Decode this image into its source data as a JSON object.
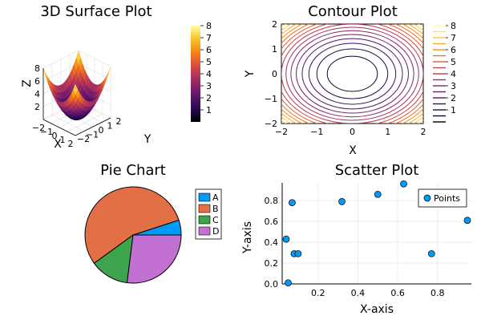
{
  "chart_data": [
    {
      "type": "surface",
      "title": "3D Surface Plot",
      "xlabel": "X",
      "ylabel": "Y",
      "zlabel": "Z",
      "function": "x^2 + y^2",
      "xlim": [
        -2,
        2
      ],
      "ylim": [
        -2,
        2
      ],
      "zlim": [
        0,
        8
      ],
      "x_ticks": [
        "−2",
        "−1",
        "0",
        "1",
        "2"
      ],
      "y_ticks": [
        "−2",
        "−1",
        "0",
        "1",
        "2"
      ],
      "z_ticks": [
        "2",
        "4",
        "6",
        "8"
      ],
      "colormap": "inferno",
      "colorbar_ticks": [
        "1",
        "2",
        "3",
        "4",
        "5",
        "6",
        "7",
        "8"
      ],
      "colorbar_range": [
        0,
        8
      ]
    },
    {
      "type": "contour",
      "title": "Contour Plot",
      "xlabel": "X",
      "ylabel": "Y",
      "function": "x^2 + y^2",
      "xlim": [
        -2,
        2
      ],
      "ylim": [
        -2,
        2
      ],
      "x_ticks": [
        "−2",
        "−1",
        "0",
        "1",
        "2"
      ],
      "y_ticks": [
        "−2",
        "−1",
        "0",
        "1",
        "2"
      ],
      "levels": [
        0.5,
        1,
        1.5,
        2,
        2.5,
        3,
        3.5,
        4,
        4.5,
        5,
        5.5,
        6,
        6.5,
        7,
        7.5,
        8
      ],
      "colormap": "inferno",
      "colorbar_ticks": [
        "1",
        "2",
        "3",
        "4",
        "5",
        "6",
        "7",
        "8"
      ],
      "colorbar_range": [
        0,
        8
      ]
    },
    {
      "type": "pie",
      "title": "Pie Chart",
      "labels": [
        "A",
        "B",
        "C",
        "D"
      ],
      "values": [
        0.05,
        0.55,
        0.13,
        0.27
      ],
      "colors": [
        "#009af9",
        "#e26f46",
        "#3da44d",
        "#c271d2"
      ],
      "legend_position": "right"
    },
    {
      "type": "scatter",
      "title": "Scatter Plot",
      "xlabel": "X-axis",
      "ylabel": "Y-axis",
      "xlim": [
        0.02,
        0.97
      ],
      "ylim": [
        0.0,
        0.97
      ],
      "x_ticks": [
        "0.2",
        "0.4",
        "0.6",
        "0.8"
      ],
      "y_ticks": [
        "0.0",
        "0.2",
        "0.4",
        "0.6",
        "0.8"
      ],
      "color": "#009af9",
      "grid": true,
      "legend_position": "top-right",
      "series": [
        {
          "name": "Points",
          "points": [
            [
              0.04,
              0.43
            ],
            [
              0.05,
              0.01
            ],
            [
              0.07,
              0.78
            ],
            [
              0.08,
              0.29
            ],
            [
              0.1,
              0.29
            ],
            [
              0.32,
              0.79
            ],
            [
              0.5,
              0.86
            ],
            [
              0.63,
              0.96
            ],
            [
              0.77,
              0.29
            ],
            [
              0.95,
              0.61
            ]
          ]
        }
      ]
    }
  ]
}
